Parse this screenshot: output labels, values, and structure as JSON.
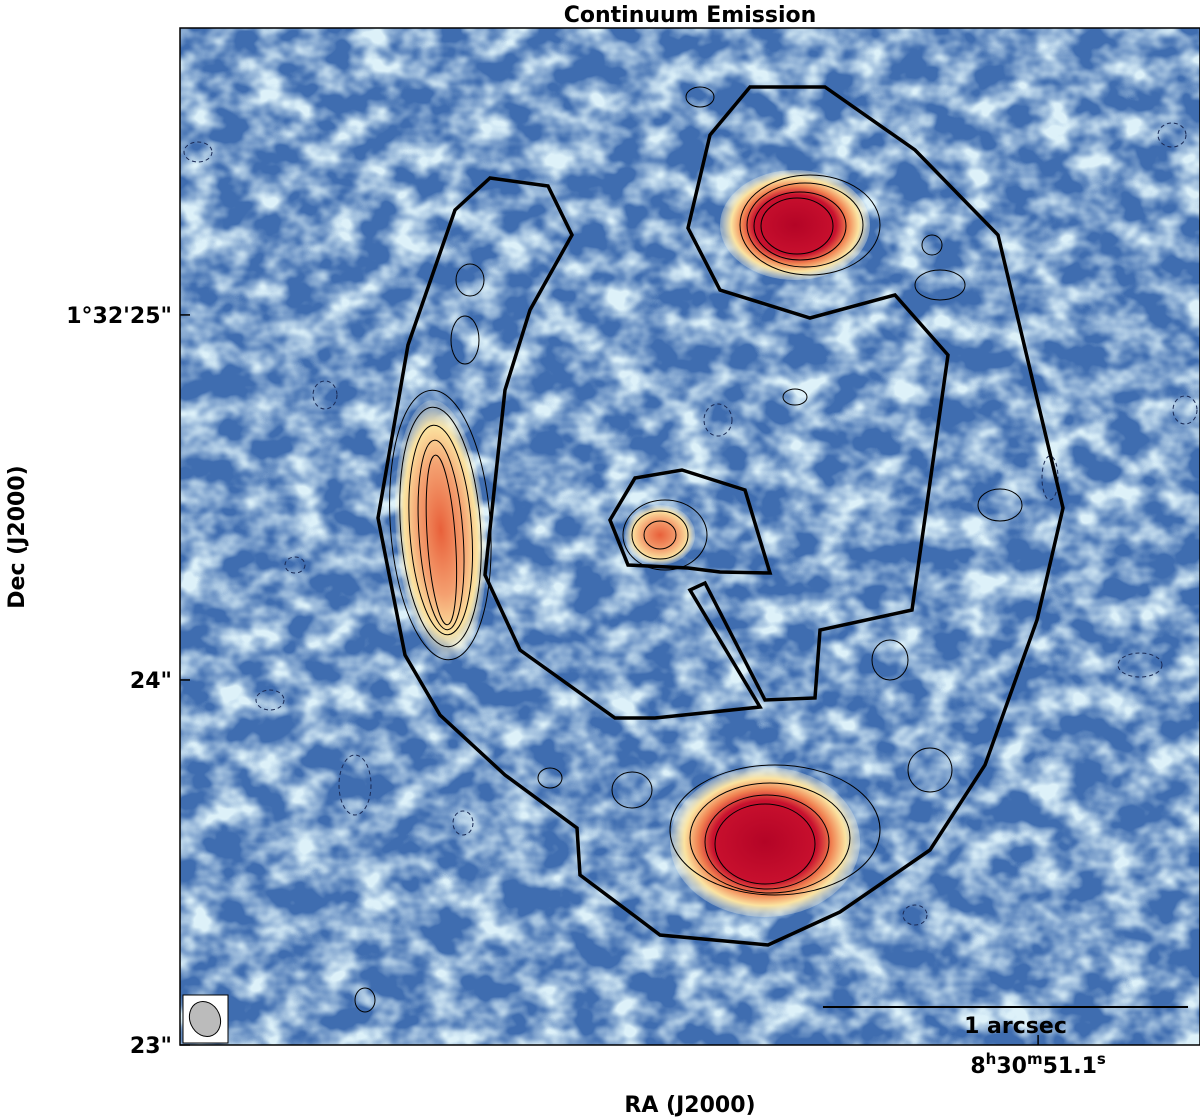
{
  "chart_data": {
    "type": "image",
    "title": "Continuum Emission",
    "x_label": "RA (J2000)",
    "y_label": "Dec (J2000)",
    "xlim": [
      51.259,
      51.07
    ],
    "xticks": [
      {
        "value": 51.1,
        "label": [
          "8",
          "h",
          "30",
          "m",
          "51.1",
          "s"
        ]
      }
    ],
    "ylim": [
      23.0,
      25.786
    ],
    "yticks": [
      {
        "value": 25,
        "label": "1°32'25\""
      },
      {
        "value": 24,
        "label": "24\""
      },
      {
        "value": 23,
        "label": "23\""
      }
    ],
    "scale_bar": {
      "value": 1,
      "label": "1 arcsec"
    }
  }
}
